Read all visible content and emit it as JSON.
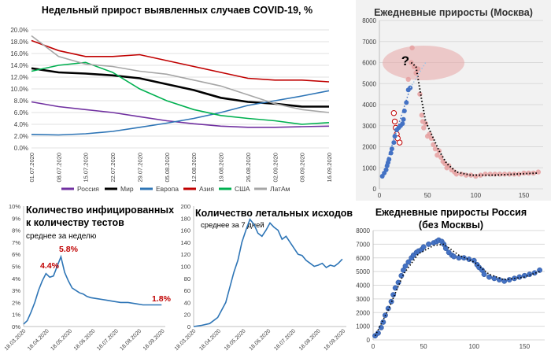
{
  "chart_data": [
    {
      "id": "weekly",
      "type": "line",
      "title": "Недельный прирост выявленных случаев COVID-19, %",
      "x": [
        "01.07.2020",
        "08.07.2020",
        "15.07.2020",
        "22.07.2020",
        "29.07.2020",
        "05.08.2020",
        "12.08.2020",
        "19.08.2020",
        "26.08.2020",
        "02.09.2020",
        "09.09.2020",
        "16.09.2020"
      ],
      "y_ticks": [
        "0.0%",
        "2.0%",
        "4.0%",
        "6.0%",
        "8.0%",
        "10.0%",
        "12.0%",
        "14.0%",
        "16.0%",
        "18.0%",
        "20.0%"
      ],
      "ylim": [
        0,
        20
      ],
      "legend_position": "bottom",
      "series": [
        {
          "name": "Россия",
          "color": "#7030a0",
          "values": [
            7.8,
            7.0,
            6.5,
            6.0,
            5.3,
            4.6,
            4.1,
            3.7,
            3.5,
            3.5,
            3.6,
            3.7
          ]
        },
        {
          "name": "Мир",
          "color": "#000000",
          "values": [
            13.5,
            12.8,
            12.6,
            12.3,
            11.8,
            10.8,
            9.8,
            8.5,
            7.8,
            7.5,
            7.0,
            7.0
          ]
        },
        {
          "name": "Европа",
          "color": "#2e75b6",
          "values": [
            2.3,
            2.2,
            2.4,
            2.8,
            3.5,
            4.2,
            5.0,
            6.0,
            7.2,
            8.0,
            8.8,
            9.7
          ]
        },
        {
          "name": "Азия",
          "color": "#c00000",
          "values": [
            18.2,
            16.5,
            15.5,
            15.5,
            15.8,
            14.8,
            13.8,
            12.8,
            11.8,
            11.5,
            11.5,
            11.2
          ]
        },
        {
          "name": "США",
          "color": "#00b050",
          "values": [
            13.0,
            14.0,
            14.5,
            12.8,
            10.0,
            8.0,
            6.5,
            5.5,
            5.0,
            4.6,
            4.0,
            4.3
          ]
        },
        {
          "name": "ЛатАм",
          "color": "#a6a6a6",
          "values": [
            19.0,
            15.5,
            14.2,
            13.8,
            13.0,
            12.5,
            11.5,
            10.5,
            9.0,
            7.5,
            6.5,
            6.0
          ]
        }
      ]
    },
    {
      "id": "moscow",
      "type": "scatter",
      "title": "Ежедневные приросты (Москва)",
      "xlim": [
        0,
        170
      ],
      "ylim": [
        0,
        8000
      ],
      "x_ticks": [
        "0",
        "50",
        "100",
        "150"
      ],
      "y_ticks": [
        "0",
        "1000",
        "2000",
        "3000",
        "4000",
        "5000",
        "6000",
        "7000",
        "8000"
      ],
      "annotation": "?",
      "blue_points": [
        [
          3,
          600
        ],
        [
          5,
          750
        ],
        [
          7,
          900
        ],
        [
          8,
          1100
        ],
        [
          9,
          1250
        ],
        [
          10,
          1400
        ],
        [
          12,
          1700
        ],
        [
          13,
          1900
        ],
        [
          15,
          2200
        ],
        [
          16,
          2500
        ],
        [
          18,
          2800
        ],
        [
          20,
          2900
        ],
        [
          22,
          3000
        ],
        [
          24,
          3100
        ],
        [
          25,
          3300
        ],
        [
          26,
          3700
        ],
        [
          28,
          4100
        ],
        [
          30,
          4700
        ],
        [
          32,
          4800
        ]
      ],
      "pink_points": [
        [
          30,
          5200
        ],
        [
          33,
          6000
        ],
        [
          34,
          6700
        ],
        [
          36,
          5800
        ],
        [
          38,
          5500
        ],
        [
          40,
          5700
        ],
        [
          42,
          4500
        ],
        [
          44,
          3500
        ],
        [
          45,
          3200
        ],
        [
          46,
          2900
        ],
        [
          48,
          3100
        ],
        [
          50,
          2500
        ],
        [
          52,
          2600
        ],
        [
          54,
          2400
        ],
        [
          56,
          2100
        ],
        [
          58,
          1900
        ],
        [
          60,
          1600
        ],
        [
          62,
          1800
        ],
        [
          64,
          1500
        ],
        [
          66,
          1300
        ],
        [
          68,
          1200
        ],
        [
          70,
          1000
        ],
        [
          72,
          1100
        ],
        [
          75,
          900
        ],
        [
          78,
          800
        ],
        [
          80,
          700
        ],
        [
          85,
          700
        ],
        [
          90,
          650
        ],
        [
          95,
          650
        ],
        [
          100,
          600
        ],
        [
          105,
          650
        ],
        [
          110,
          700
        ],
        [
          115,
          700
        ],
        [
          120,
          700
        ],
        [
          125,
          700
        ],
        [
          130,
          700
        ],
        [
          135,
          700
        ],
        [
          140,
          700
        ],
        [
          145,
          700
        ],
        [
          150,
          750
        ],
        [
          155,
          750
        ],
        [
          160,
          750
        ],
        [
          165,
          800
        ]
      ],
      "red_open_points": [
        [
          15,
          3600
        ],
        [
          16,
          3200
        ],
        [
          17,
          2900
        ],
        [
          18,
          2600
        ],
        [
          19,
          2400
        ],
        [
          21,
          2200
        ]
      ],
      "trend_dotted": [
        [
          33,
          6000
        ],
        [
          38,
          5800
        ],
        [
          44,
          4200
        ],
        [
          48,
          3200
        ],
        [
          55,
          2500
        ],
        [
          62,
          1800
        ],
        [
          70,
          1200
        ],
        [
          80,
          800
        ],
        [
          95,
          650
        ],
        [
          120,
          650
        ],
        [
          165,
          750
        ]
      ]
    },
    {
      "id": "tests",
      "type": "line",
      "title_line1": "Количество инфицированных",
      "title_line2": "к количеству тестов",
      "subtitle": "среднее за неделю",
      "x_ticks": [
        "18.03.2020",
        "18.04.2020",
        "18.05.2020",
        "18.06.2020",
        "18.07.2020",
        "18.08.2020",
        "18.09.2020"
      ],
      "y_ticks": [
        "0%",
        "1%",
        "2%",
        "3%",
        "4%",
        "5%",
        "6%",
        "7%",
        "8%",
        "9%",
        "10%"
      ],
      "ylim": [
        0,
        10
      ],
      "labels": [
        "4.4%",
        "5.8%",
        "1.8%"
      ],
      "x": [
        0,
        5,
        10,
        15,
        20,
        25,
        30,
        35,
        40,
        45,
        50,
        55,
        60,
        65,
        70,
        75,
        80,
        85,
        90,
        100,
        110,
        120,
        130,
        140,
        150,
        160,
        170,
        180,
        185
      ],
      "values": [
        0.2,
        0.5,
        1.2,
        2.0,
        3.0,
        3.8,
        4.4,
        4.1,
        4.2,
        5.0,
        5.8,
        4.5,
        3.8,
        3.2,
        3.0,
        2.8,
        2.7,
        2.5,
        2.4,
        2.3,
        2.2,
        2.1,
        2.0,
        2.0,
        1.9,
        1.8,
        1.8,
        1.8,
        1.8
      ]
    },
    {
      "id": "deaths",
      "type": "line",
      "title": "Количество летальных исходов",
      "subtitle": "среднее за 7 дней",
      "x_ticks": [
        "18.03.2020",
        "18.04.2020",
        "18.05.2020",
        "18.06.2020",
        "18.07.2020",
        "18.08.2020",
        "18.09.2020"
      ],
      "y_ticks": [
        "0",
        "20",
        "40",
        "60",
        "80",
        "100",
        "120",
        "140",
        "160",
        "180",
        "200"
      ],
      "ylim": [
        0,
        200
      ],
      "x": [
        0,
        10,
        20,
        30,
        40,
        50,
        55,
        60,
        65,
        70,
        75,
        80,
        85,
        90,
        95,
        100,
        105,
        110,
        115,
        120,
        125,
        130,
        135,
        140,
        145,
        150,
        155,
        160,
        165,
        170,
        175,
        180,
        185
      ],
      "values": [
        0,
        2,
        5,
        15,
        40,
        90,
        110,
        140,
        160,
        178,
        170,
        155,
        150,
        160,
        172,
        165,
        160,
        145,
        150,
        140,
        130,
        120,
        118,
        110,
        105,
        100,
        102,
        105,
        98,
        102,
        100,
        105,
        112
      ]
    },
    {
      "id": "russia",
      "type": "scatter",
      "title_line1": "Ежедневные приросты Россия",
      "title_line2": "(без Москвы)",
      "xlim": [
        0,
        170
      ],
      "ylim": [
        0,
        8000
      ],
      "x_ticks": [
        "0",
        "50",
        "100",
        "150"
      ],
      "y_ticks": [
        "0",
        "1000",
        "2000",
        "3000",
        "4000",
        "5000",
        "6000",
        "7000",
        "8000"
      ],
      "points": [
        [
          2,
          300
        ],
        [
          5,
          500
        ],
        [
          8,
          900
        ],
        [
          10,
          1300
        ],
        [
          12,
          1800
        ],
        [
          15,
          2300
        ],
        [
          18,
          2800
        ],
        [
          20,
          3300
        ],
        [
          22,
          3800
        ],
        [
          25,
          4200
        ],
        [
          28,
          4700
        ],
        [
          30,
          5100
        ],
        [
          32,
          5400
        ],
        [
          35,
          5700
        ],
        [
          38,
          6000
        ],
        [
          40,
          6200
        ],
        [
          43,
          6400
        ],
        [
          45,
          6500
        ],
        [
          48,
          6600
        ],
        [
          50,
          6800
        ],
        [
          55,
          7000
        ],
        [
          60,
          7100
        ],
        [
          63,
          7200
        ],
        [
          65,
          7300
        ],
        [
          68,
          7200
        ],
        [
          70,
          7000
        ],
        [
          72,
          6700
        ],
        [
          75,
          6400
        ],
        [
          78,
          6200
        ],
        [
          80,
          6100
        ],
        [
          85,
          6000
        ],
        [
          90,
          6000
        ],
        [
          95,
          5900
        ],
        [
          100,
          5800
        ],
        [
          103,
          5500
        ],
        [
          105,
          5300
        ],
        [
          108,
          5100
        ],
        [
          110,
          4800
        ],
        [
          115,
          4600
        ],
        [
          120,
          4500
        ],
        [
          125,
          4400
        ],
        [
          130,
          4300
        ],
        [
          135,
          4400
        ],
        [
          140,
          4500
        ],
        [
          145,
          4600
        ],
        [
          150,
          4700
        ],
        [
          155,
          4800
        ],
        [
          160,
          4900
        ],
        [
          165,
          5100
        ]
      ],
      "trend_dotted": [
        [
          2,
          300
        ],
        [
          15,
          2200
        ],
        [
          30,
          4800
        ],
        [
          45,
          6300
        ],
        [
          60,
          6900
        ],
        [
          70,
          7000
        ],
        [
          85,
          6200
        ],
        [
          100,
          5700
        ],
        [
          115,
          4800
        ],
        [
          130,
          4400
        ],
        [
          150,
          4600
        ],
        [
          165,
          5000
        ]
      ]
    }
  ]
}
